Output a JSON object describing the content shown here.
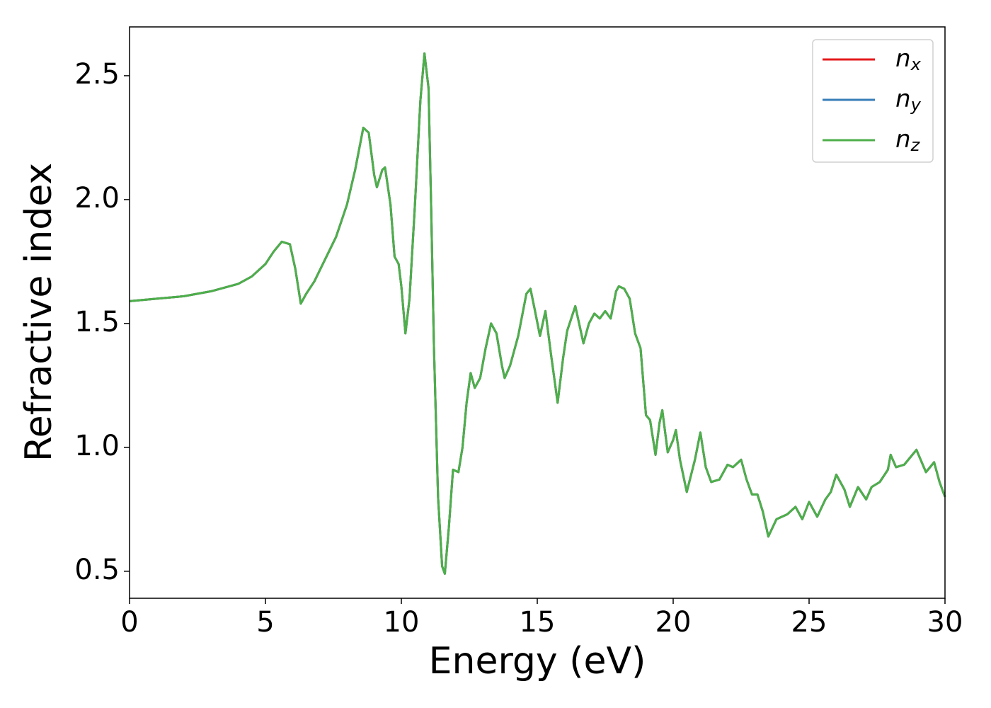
{
  "chart_data": {
    "type": "line",
    "xlabel": "Energy (eV)",
    "ylabel": "Refractive index",
    "xlim": [
      0,
      30
    ],
    "ylim": [
      0.391,
      2.697
    ],
    "xticks": [
      0,
      5,
      10,
      15,
      20,
      25,
      30
    ],
    "yticks": [
      0.5,
      {
        "value": 1,
        "label": "1.0"
      },
      1.5,
      {
        "value": 2,
        "label": "2.0"
      },
      2.5
    ],
    "legend": "upper right",
    "grid": false,
    "x": [
      0,
      1,
      2,
      3,
      4,
      4.5,
      5,
      5.3,
      5.6,
      5.9,
      6.1,
      6.3,
      6.5,
      6.8,
      7.2,
      7.6,
      8.0,
      8.3,
      8.6,
      8.8,
      9.0,
      9.1,
      9.3,
      9.4,
      9.6,
      9.75,
      9.9,
      10.0,
      10.15,
      10.3,
      10.5,
      10.7,
      10.85,
      11.0,
      11.1,
      11.2,
      11.35,
      11.5,
      11.6,
      11.75,
      11.9,
      12.1,
      12.25,
      12.4,
      12.55,
      12.7,
      12.9,
      13.1,
      13.3,
      13.5,
      13.7,
      13.8,
      14.0,
      14.3,
      14.6,
      14.75,
      14.9,
      15.1,
      15.3,
      15.5,
      15.75,
      15.95,
      16.1,
      16.4,
      16.7,
      16.9,
      17.1,
      17.3,
      17.5,
      17.7,
      17.9,
      18.0,
      18.2,
      18.4,
      18.6,
      18.8,
      19.0,
      19.15,
      19.35,
      19.5,
      19.6,
      19.8,
      20.0,
      20.1,
      20.25,
      20.5,
      20.8,
      21.0,
      21.2,
      21.4,
      21.7,
      22.0,
      22.2,
      22.5,
      22.7,
      22.9,
      23.1,
      23.3,
      23.5,
      23.8,
      24.0,
      24.2,
      24.5,
      24.75,
      25.0,
      25.3,
      25.6,
      25.8,
      26.0,
      26.3,
      26.5,
      26.8,
      27.1,
      27.3,
      27.6,
      27.9,
      28.0,
      28.2,
      28.5,
      28.8,
      28.95,
      29.3,
      29.6,
      29.8,
      30.0
    ],
    "series": [
      {
        "name": "nx",
        "color": "#e41a1c",
        "values": [
          1.59,
          1.6,
          1.61,
          1.63,
          1.66,
          1.69,
          1.74,
          1.79,
          1.83,
          1.82,
          1.72,
          1.58,
          1.62,
          1.67,
          1.76,
          1.85,
          1.98,
          2.12,
          2.29,
          2.27,
          2.1,
          2.05,
          2.12,
          2.13,
          1.98,
          1.77,
          1.74,
          1.65,
          1.46,
          1.6,
          1.98,
          2.4,
          2.59,
          2.45,
          1.95,
          1.4,
          0.8,
          0.52,
          0.49,
          0.68,
          0.91,
          0.9,
          1.0,
          1.18,
          1.3,
          1.24,
          1.28,
          1.4,
          1.5,
          1.46,
          1.33,
          1.28,
          1.33,
          1.45,
          1.62,
          1.64,
          1.56,
          1.45,
          1.55,
          1.38,
          1.18,
          1.36,
          1.47,
          1.57,
          1.42,
          1.5,
          1.54,
          1.52,
          1.55,
          1.52,
          1.63,
          1.65,
          1.64,
          1.6,
          1.46,
          1.4,
          1.13,
          1.11,
          0.97,
          1.1,
          1.15,
          0.98,
          1.03,
          1.07,
          0.95,
          0.82,
          0.95,
          1.06,
          0.92,
          0.86,
          0.87,
          0.93,
          0.92,
          0.95,
          0.87,
          0.81,
          0.81,
          0.74,
          0.64,
          0.71,
          0.72,
          0.73,
          0.76,
          0.71,
          0.78,
          0.72,
          0.79,
          0.82,
          0.89,
          0.83,
          0.76,
          0.84,
          0.79,
          0.84,
          0.86,
          0.91,
          0.97,
          0.92,
          0.93,
          0.97,
          0.99,
          0.9,
          0.94,
          0.86,
          0.8
        ]
      },
      {
        "name": "ny",
        "color": "#377eb8",
        "values": [
          1.59,
          1.6,
          1.61,
          1.63,
          1.66,
          1.69,
          1.74,
          1.79,
          1.83,
          1.82,
          1.72,
          1.58,
          1.62,
          1.67,
          1.76,
          1.85,
          1.98,
          2.12,
          2.29,
          2.27,
          2.1,
          2.05,
          2.12,
          2.13,
          1.98,
          1.77,
          1.74,
          1.65,
          1.46,
          1.6,
          1.98,
          2.4,
          2.59,
          2.45,
          1.95,
          1.4,
          0.8,
          0.52,
          0.49,
          0.68,
          0.91,
          0.9,
          1.0,
          1.18,
          1.3,
          1.24,
          1.28,
          1.4,
          1.5,
          1.46,
          1.33,
          1.28,
          1.33,
          1.45,
          1.62,
          1.64,
          1.56,
          1.45,
          1.55,
          1.38,
          1.18,
          1.36,
          1.47,
          1.57,
          1.42,
          1.5,
          1.54,
          1.52,
          1.55,
          1.52,
          1.63,
          1.65,
          1.64,
          1.6,
          1.46,
          1.4,
          1.13,
          1.11,
          0.97,
          1.1,
          1.15,
          0.98,
          1.03,
          1.07,
          0.95,
          0.82,
          0.95,
          1.06,
          0.92,
          0.86,
          0.87,
          0.93,
          0.92,
          0.95,
          0.87,
          0.81,
          0.81,
          0.74,
          0.64,
          0.71,
          0.72,
          0.73,
          0.76,
          0.71,
          0.78,
          0.72,
          0.79,
          0.82,
          0.89,
          0.83,
          0.76,
          0.84,
          0.79,
          0.84,
          0.86,
          0.91,
          0.97,
          0.92,
          0.93,
          0.97,
          0.99,
          0.9,
          0.94,
          0.86,
          0.8
        ]
      },
      {
        "name": "nz",
        "color": "#4daf4a",
        "values": [
          1.59,
          1.6,
          1.61,
          1.63,
          1.66,
          1.69,
          1.74,
          1.79,
          1.83,
          1.82,
          1.72,
          1.58,
          1.62,
          1.67,
          1.76,
          1.85,
          1.98,
          2.12,
          2.29,
          2.27,
          2.1,
          2.05,
          2.12,
          2.13,
          1.98,
          1.77,
          1.74,
          1.65,
          1.46,
          1.6,
          1.98,
          2.4,
          2.59,
          2.45,
          1.95,
          1.4,
          0.8,
          0.52,
          0.49,
          0.68,
          0.91,
          0.9,
          1.0,
          1.18,
          1.3,
          1.24,
          1.28,
          1.4,
          1.5,
          1.46,
          1.33,
          1.28,
          1.33,
          1.45,
          1.62,
          1.64,
          1.56,
          1.45,
          1.55,
          1.38,
          1.18,
          1.36,
          1.47,
          1.57,
          1.42,
          1.5,
          1.54,
          1.52,
          1.55,
          1.52,
          1.63,
          1.65,
          1.64,
          1.6,
          1.46,
          1.4,
          1.13,
          1.11,
          0.97,
          1.1,
          1.15,
          0.98,
          1.03,
          1.07,
          0.95,
          0.82,
          0.95,
          1.06,
          0.92,
          0.86,
          0.87,
          0.93,
          0.92,
          0.95,
          0.87,
          0.81,
          0.81,
          0.74,
          0.64,
          0.71,
          0.72,
          0.73,
          0.76,
          0.71,
          0.78,
          0.72,
          0.79,
          0.82,
          0.89,
          0.83,
          0.76,
          0.84,
          0.79,
          0.84,
          0.86,
          0.91,
          0.97,
          0.92,
          0.93,
          0.97,
          0.99,
          0.9,
          0.94,
          0.86,
          0.8
        ]
      }
    ]
  }
}
